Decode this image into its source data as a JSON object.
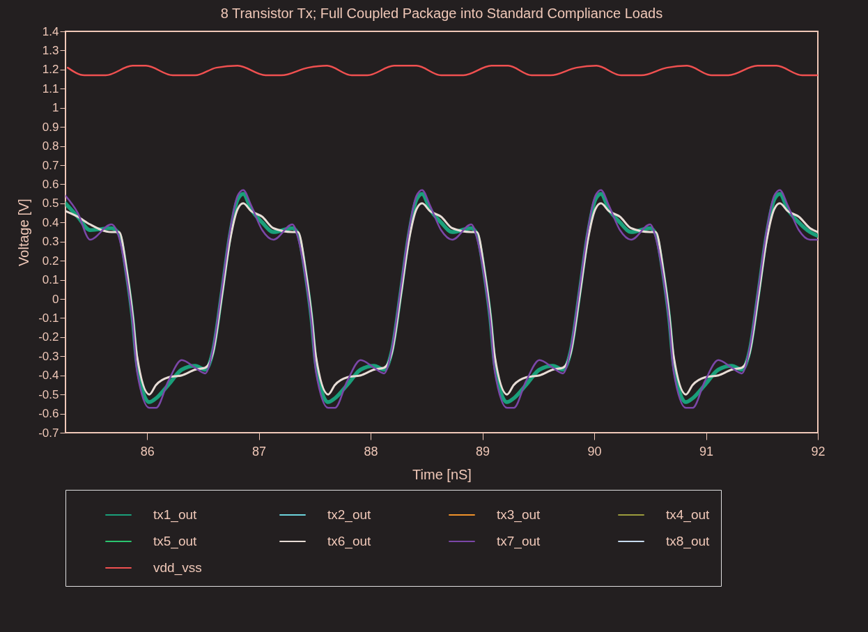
{
  "chart_data": {
    "type": "line",
    "title": "8 Transistor Tx; Full Coupled Package into Standard Compliance Loads",
    "xlabel": "Time [nS]",
    "ylabel": "Voltage [V]",
    "xlim": [
      85.27,
      92
    ],
    "xticks": [
      86,
      87,
      88,
      89,
      90,
      91,
      92
    ],
    "ylim": [
      -0.7,
      1.4
    ],
    "yticks": [
      -0.7,
      -0.6,
      -0.5,
      -0.4,
      -0.3,
      -0.2,
      -0.1,
      0,
      0.1,
      0.2,
      0.3,
      0.4,
      0.5,
      0.6,
      0.7,
      0.8,
      0.9,
      1,
      1.1,
      1.2,
      1.3,
      1.4
    ],
    "grid": false,
    "legend": "bottom",
    "x": [
      85.27,
      85.38,
      85.49,
      85.68,
      85.75,
      85.82,
      85.87,
      85.91,
      86.02,
      86.08,
      86.19,
      86.31,
      86.43,
      86.52,
      86.59,
      86.67,
      86.74,
      86.81,
      86.86,
      86.93,
      87.03,
      87.13,
      87.3,
      87.35,
      87.42,
      87.47,
      87.51,
      87.62,
      87.68,
      87.79,
      87.91,
      88.03,
      88.12,
      88.19,
      88.27,
      88.34,
      88.41,
      88.46,
      88.53,
      88.63,
      88.73,
      88.9,
      88.95,
      89.02,
      89.07,
      89.11,
      89.22,
      89.28,
      89.39,
      89.51,
      89.63,
      89.72,
      89.79,
      89.87,
      89.94,
      90.01,
      90.06,
      90.13,
      90.23,
      90.33,
      90.5,
      90.55,
      90.62,
      90.67,
      90.71,
      90.82,
      90.88,
      90.99,
      91.11,
      91.23,
      91.32,
      91.39,
      91.47,
      91.54,
      91.61,
      91.66,
      91.73,
      91.83,
      91.93,
      92.0
    ],
    "series": [
      {
        "name": "tx1_out",
        "color": "#1a9f7a",
        "values": [
          0.5,
          0.43,
          0.36,
          0.37,
          0.34,
          0.12,
          -0.1,
          -0.34,
          -0.54,
          -0.52,
          -0.45,
          -0.37,
          -0.35,
          -0.37,
          -0.27,
          0.04,
          0.33,
          0.52,
          0.55,
          0.47,
          0.4,
          0.35,
          0.37,
          0.34,
          0.12,
          -0.1,
          -0.34,
          -0.54,
          -0.52,
          -0.45,
          -0.37,
          -0.35,
          -0.37,
          -0.27,
          0.04,
          0.33,
          0.52,
          0.55,
          0.47,
          0.4,
          0.35,
          0.37,
          0.34,
          0.12,
          -0.1,
          -0.34,
          -0.54,
          -0.52,
          -0.45,
          -0.37,
          -0.35,
          -0.37,
          -0.27,
          0.04,
          0.33,
          0.52,
          0.55,
          0.47,
          0.4,
          0.35,
          0.37,
          0.34,
          0.12,
          -0.1,
          -0.34,
          -0.54,
          -0.52,
          -0.45,
          -0.37,
          -0.35,
          -0.37,
          -0.27,
          0.04,
          0.33,
          0.52,
          0.55,
          0.47,
          0.4,
          0.35,
          0.33
        ]
      },
      {
        "name": "tx2_out",
        "color": "#6cd4dc",
        "values": [
          null,
          null,
          null,
          null,
          null,
          null,
          null,
          null,
          null,
          null,
          null,
          null,
          null,
          null,
          null,
          null,
          null,
          null,
          null,
          null,
          null,
          null,
          null,
          null,
          null,
          null,
          null,
          null,
          null,
          null,
          null,
          null,
          null,
          null,
          null,
          null,
          null,
          null,
          null,
          null,
          null,
          null,
          null,
          null,
          null,
          null,
          null,
          null,
          null,
          null,
          null,
          null,
          null,
          null,
          null,
          null,
          null,
          null,
          null,
          null,
          null,
          null,
          null,
          null,
          null,
          null,
          null,
          null,
          null,
          null,
          null,
          null,
          null,
          null,
          null,
          null,
          null,
          null,
          null,
          null
        ]
      },
      {
        "name": "tx3_out",
        "color": "#f0922a",
        "values": [
          null,
          null,
          null,
          null,
          null,
          null,
          null,
          null,
          null,
          null,
          null,
          null,
          null,
          null,
          null,
          null,
          null,
          null,
          null,
          null,
          null,
          null,
          null,
          null,
          null,
          null,
          null,
          null,
          null,
          null,
          null,
          null,
          null,
          null,
          null,
          null,
          null,
          null,
          null,
          null,
          null,
          null,
          null,
          null,
          null,
          null,
          null,
          null,
          null,
          null,
          null,
          null,
          null,
          null,
          null,
          null,
          null,
          null,
          null,
          null,
          null,
          null,
          null,
          null,
          null,
          null,
          null,
          null,
          null,
          null,
          null,
          null,
          null,
          null,
          null,
          null,
          null,
          null,
          null,
          null
        ]
      },
      {
        "name": "tx4_out",
        "color": "#9c9c3c",
        "values": [
          null,
          null,
          null,
          null,
          null,
          null,
          null,
          null,
          null,
          null,
          null,
          null,
          null,
          null,
          null,
          null,
          null,
          null,
          null,
          null,
          null,
          null,
          null,
          null,
          null,
          null,
          null,
          null,
          null,
          null,
          null,
          null,
          null,
          null,
          null,
          null,
          null,
          null,
          null,
          null,
          null,
          null,
          null,
          null,
          null,
          null,
          null,
          null,
          null,
          null,
          null,
          null,
          null,
          null,
          null,
          null,
          null,
          null,
          null,
          null,
          null,
          null,
          null,
          null,
          null,
          null,
          null,
          null,
          null,
          null,
          null,
          null,
          null,
          null,
          null,
          null,
          null,
          null,
          null,
          null
        ]
      },
      {
        "name": "tx5_out",
        "color": "#2bc46f",
        "values": [
          null,
          null,
          null,
          null,
          null,
          null,
          null,
          null,
          null,
          null,
          null,
          null,
          null,
          null,
          null,
          null,
          null,
          null,
          null,
          null,
          null,
          null,
          null,
          null,
          null,
          null,
          null,
          null,
          null,
          null,
          null,
          null,
          null,
          null,
          null,
          null,
          null,
          null,
          null,
          null,
          null,
          null,
          null,
          null,
          null,
          null,
          null,
          null,
          null,
          null,
          null,
          null,
          null,
          null,
          null,
          null,
          null,
          null,
          null,
          null,
          null,
          null,
          null,
          null,
          null,
          null,
          null,
          null,
          null,
          null,
          null,
          null,
          null,
          null,
          null,
          null,
          null,
          null,
          null,
          null
        ]
      },
      {
        "name": "tx6_out",
        "color": "#e8ddd6",
        "values": [
          0.46,
          0.43,
          0.39,
          0.35,
          0.35,
          0.14,
          -0.08,
          -0.3,
          -0.5,
          -0.45,
          -0.41,
          -0.4,
          -0.37,
          -0.36,
          -0.28,
          0.02,
          0.3,
          0.47,
          0.5,
          0.46,
          0.43,
          0.37,
          0.35,
          0.35,
          0.14,
          -0.08,
          -0.3,
          -0.5,
          -0.45,
          -0.41,
          -0.4,
          -0.37,
          -0.36,
          -0.28,
          0.02,
          0.3,
          0.47,
          0.5,
          0.46,
          0.43,
          0.37,
          0.35,
          0.35,
          0.14,
          -0.08,
          -0.3,
          -0.5,
          -0.45,
          -0.41,
          -0.4,
          -0.37,
          -0.36,
          -0.28,
          0.02,
          0.3,
          0.47,
          0.5,
          0.46,
          0.43,
          0.37,
          0.35,
          0.35,
          0.14,
          -0.08,
          -0.3,
          -0.5,
          -0.45,
          -0.41,
          -0.4,
          -0.37,
          -0.36,
          -0.28,
          0.02,
          0.3,
          0.47,
          0.5,
          0.46,
          0.43,
          0.37,
          0.35
        ]
      },
      {
        "name": "tx7_out",
        "color": "#7b47a8",
        "values": [
          0.54,
          0.45,
          0.31,
          0.39,
          0.32,
          0.1,
          -0.12,
          -0.38,
          -0.57,
          -0.57,
          -0.43,
          -0.32,
          -0.36,
          -0.39,
          -0.26,
          0.06,
          0.35,
          0.54,
          0.57,
          0.49,
          0.36,
          0.31,
          0.39,
          0.32,
          0.1,
          -0.12,
          -0.38,
          -0.57,
          -0.57,
          -0.43,
          -0.32,
          -0.36,
          -0.39,
          -0.26,
          0.06,
          0.35,
          0.54,
          0.57,
          0.49,
          0.36,
          0.31,
          0.39,
          0.32,
          0.1,
          -0.12,
          -0.38,
          -0.57,
          -0.57,
          -0.43,
          -0.32,
          -0.36,
          -0.39,
          -0.26,
          0.06,
          0.35,
          0.54,
          0.57,
          0.49,
          0.36,
          0.31,
          0.39,
          0.32,
          0.1,
          -0.12,
          -0.38,
          -0.57,
          -0.57,
          -0.43,
          -0.32,
          -0.36,
          -0.39,
          -0.26,
          0.06,
          0.35,
          0.54,
          0.57,
          0.49,
          0.36,
          0.31,
          0.31
        ]
      },
      {
        "name": "tx8_out",
        "color": "#c8dcf0",
        "values": [
          null,
          null,
          null,
          null,
          null,
          null,
          null,
          null,
          null,
          null,
          null,
          null,
          null,
          null,
          null,
          null,
          null,
          null,
          null,
          null,
          null,
          null,
          null,
          null,
          null,
          null,
          null,
          null,
          null,
          null,
          null,
          null,
          null,
          null,
          null,
          null,
          null,
          null,
          null,
          null,
          null,
          null,
          null,
          null,
          null,
          null,
          null,
          null,
          null,
          null,
          null,
          null,
          null,
          null,
          null,
          null,
          null,
          null,
          null,
          null,
          null,
          null,
          null,
          null,
          null,
          null,
          null,
          null,
          null,
          null,
          null,
          null,
          null,
          null,
          null,
          null,
          null,
          null,
          null,
          null
        ]
      },
      {
        "name": "vdd_vss",
        "color": "#f05050",
        "x": [
          85.29,
          85.44,
          85.63,
          85.87,
          85.99,
          86.23,
          86.43,
          86.62,
          86.81,
          87.06,
          87.2,
          87.44,
          87.61,
          87.83,
          87.97,
          88.21,
          88.41,
          88.63,
          88.83,
          89.08,
          89.23,
          89.44,
          89.61,
          89.84,
          90.02,
          90.24,
          90.42,
          90.65,
          90.83,
          91.05,
          91.2,
          91.46,
          91.63,
          91.86,
          92.0
        ],
        "values": [
          1.21,
          1.17,
          1.17,
          1.22,
          1.22,
          1.17,
          1.17,
          1.21,
          1.22,
          1.17,
          1.17,
          1.21,
          1.22,
          1.17,
          1.17,
          1.22,
          1.22,
          1.17,
          1.17,
          1.22,
          1.22,
          1.17,
          1.17,
          1.21,
          1.22,
          1.17,
          1.17,
          1.21,
          1.22,
          1.17,
          1.17,
          1.22,
          1.22,
          1.17,
          1.17
        ]
      }
    ]
  }
}
